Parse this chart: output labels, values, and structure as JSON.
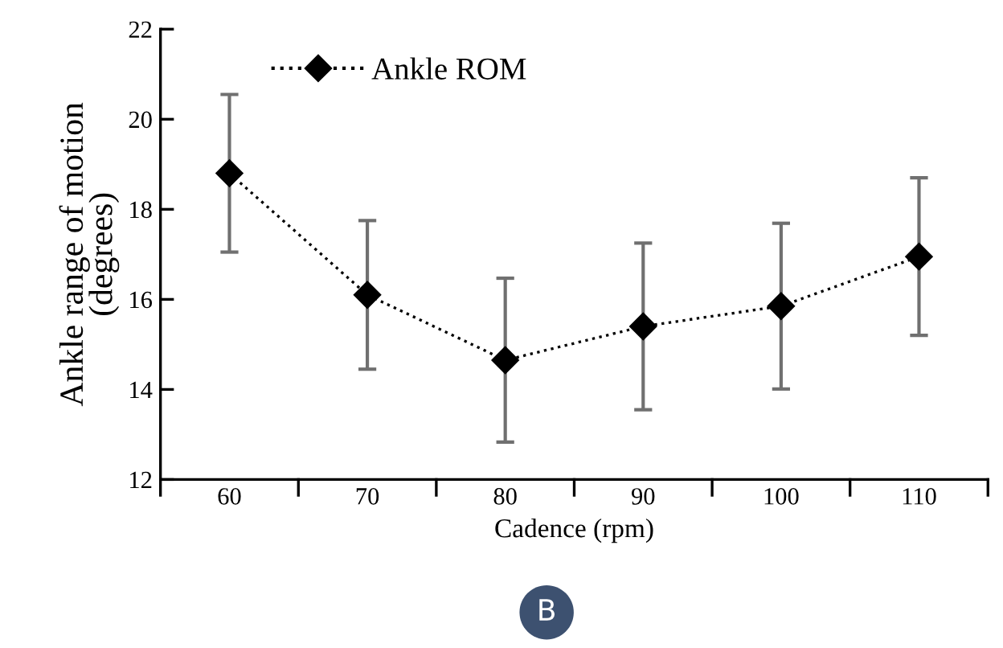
{
  "chart_data": {
    "type": "line",
    "xlabel": "Cadence (rpm)",
    "ylabel": "Ankle range of motion\n(degrees)",
    "categories": [
      "60",
      "70",
      "80",
      "90",
      "100",
      "110"
    ],
    "series": [
      {
        "name": "Ankle ROM",
        "color": "#000000",
        "values": [
          18.8,
          16.1,
          14.65,
          15.4,
          15.85,
          16.95
        ],
        "errors": [
          1.75,
          1.65,
          1.82,
          1.85,
          1.84,
          1.75
        ]
      }
    ],
    "ylim": [
      12,
      22
    ],
    "yticks": [
      12,
      14,
      16,
      18,
      20,
      22
    ],
    "grid": false,
    "legend": "top left",
    "marker": "diamond",
    "line_style": "dotted",
    "annotations": [
      "B"
    ]
  }
}
